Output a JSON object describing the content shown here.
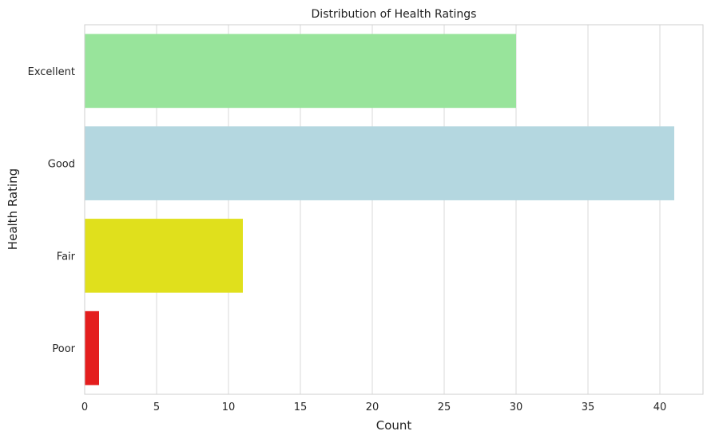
{
  "chart_data": {
    "type": "bar",
    "orientation": "horizontal",
    "title": "Distribution of Health Ratings",
    "xlabel": "Count",
    "ylabel": "Health Rating",
    "categories": [
      "Excellent",
      "Good",
      "Fair",
      "Poor"
    ],
    "values": [
      30,
      41,
      11,
      1
    ],
    "colors": [
      "#98e49b",
      "#b4d7e0",
      "#e0e01c",
      "#e41e1e"
    ],
    "xlim": [
      0,
      43
    ],
    "xticks": [
      0,
      5,
      10,
      15,
      20,
      25,
      30,
      35,
      40
    ],
    "grid": true,
    "legend": "none"
  }
}
